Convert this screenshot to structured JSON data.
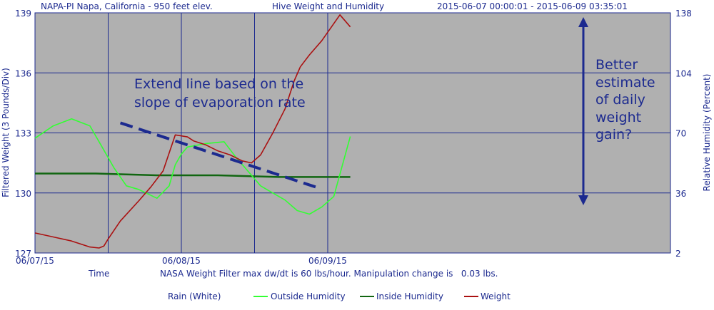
{
  "header": {
    "station": "NAPA-PI Napa, California - 950 feet elev.",
    "title": "Hive Weight and Humidity",
    "range": "2015-06-07 00:00:01 - 2015-06-09 03:35:01"
  },
  "footer": {
    "time_label": "Time",
    "filter_note": "NASA Weight Filter max dw/dt is 60 lbs/hour. Manipulation change is   0.03 lbs."
  },
  "legend": [
    {
      "label": "Rain (White)",
      "color": "#ffffff"
    },
    {
      "label": "Outside Humidity",
      "color": "#33ff33"
    },
    {
      "label": "Inside Humidity",
      "color": "#116611"
    },
    {
      "label": "Weight",
      "color": "#aa1111"
    }
  ],
  "annotations": {
    "extend_line": [
      "Extend line based on the",
      "slope of evaporation rate"
    ],
    "better_estimate": [
      "Better",
      "estimate",
      "of daily",
      "weight",
      "gain?"
    ]
  },
  "colors": {
    "plot_bg": "#b0b0b0",
    "grid": "#1c2a8f",
    "text": "#1c2a8f",
    "outside_humidity": "#33ff33",
    "inside_humidity": "#116611",
    "weight": "#aa1111",
    "annotation": "#1c2a8f"
  },
  "chart_data": {
    "type": "line",
    "title": "Hive Weight and Humidity",
    "xlabel": "Time",
    "ylabel": "Filtered Weight (3 Pounds/Div)",
    "y2label": "Relative Humidity (Percent)",
    "x_ticks": [
      "06/07/15",
      "06/08/15",
      "06/09/15"
    ],
    "x_range": [
      "2015-06-07 00:00",
      "2015-06-09 03:35"
    ],
    "y_ticks": [
      127,
      130,
      133,
      136,
      139
    ],
    "ylim": [
      127,
      139
    ],
    "y2_ticks": [
      2,
      36,
      70,
      104,
      138
    ],
    "y2lim": [
      2,
      138
    ],
    "grid": true,
    "series": [
      {
        "name": "Weight",
        "axis": "left",
        "x_hours": [
          0,
          3,
          6,
          9,
          10.5,
          11.3,
          12,
          14,
          17,
          19,
          21,
          23,
          25,
          26,
          28,
          30,
          32,
          34,
          35.5,
          37,
          39,
          41,
          42.5,
          43.5,
          45,
          47,
          50,
          51.7
        ],
        "y": [
          128.0,
          127.8,
          127.6,
          127.3,
          127.25,
          127.35,
          127.7,
          128.6,
          129.6,
          130.3,
          131.1,
          132.9,
          132.8,
          132.6,
          132.4,
          132.1,
          131.9,
          131.6,
          131.5,
          131.9,
          133.0,
          134.2,
          135.6,
          136.3,
          136.9,
          137.6,
          138.9,
          138.3
        ]
      },
      {
        "name": "Outside Humidity",
        "axis": "right",
        "x_hours": [
          0,
          3,
          6,
          9,
          11,
          13,
          15,
          17,
          20,
          22,
          23,
          24,
          25,
          28,
          31,
          33,
          35,
          37,
          39,
          41,
          43,
          45,
          47,
          49,
          51.7
        ],
        "y": [
          67,
          74,
          78,
          74,
          62,
          50,
          40,
          38,
          33,
          40,
          52,
          58,
          62,
          64,
          65,
          56,
          48,
          40,
          36,
          32,
          26,
          24,
          28,
          34,
          68
        ]
      },
      {
        "name": "Inside Humidity",
        "axis": "right",
        "x_hours": [
          0,
          10,
          20,
          30,
          40,
          51.7
        ],
        "y": [
          47,
          47,
          46,
          46,
          45,
          45
        ]
      }
    ],
    "annotation_line": {
      "label": "Extend line based on the slope of evaporation rate",
      "x_hours": [
        14,
        46
      ],
      "y": [
        133.5,
        130.3
      ]
    }
  }
}
